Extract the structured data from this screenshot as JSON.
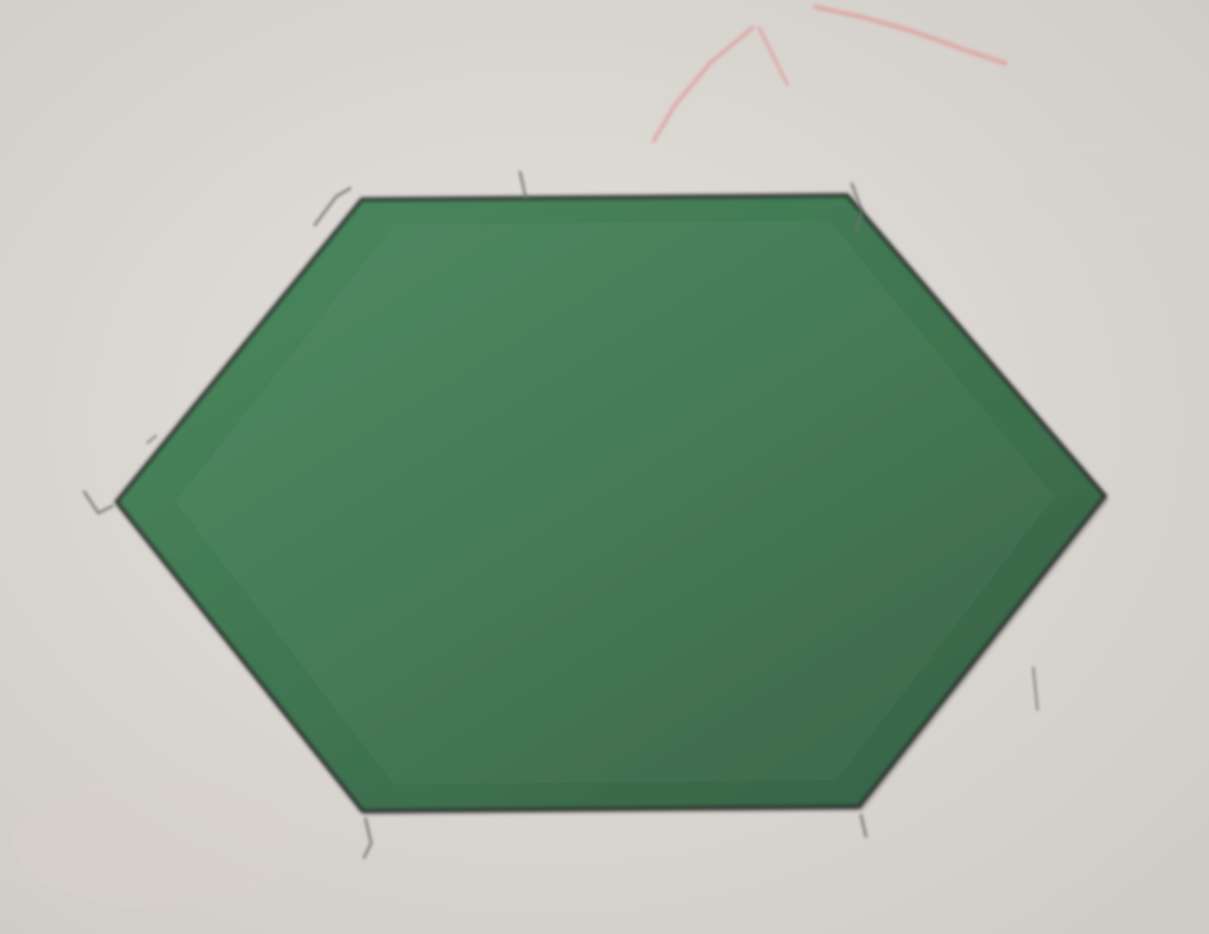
{
  "photo": {
    "paper_color": "#e4e1dc",
    "shadow_color": "#cfcbc5",
    "shape": {
      "kind": "hexagon",
      "fill_color": "#3f7350",
      "fill_light": "#4a8a5f",
      "fill_dark": "#356045",
      "outline_color": "#2b2b2b"
    },
    "pencil_marks": {
      "color": "#6e6e6e"
    },
    "red_pen_marks": {
      "color": "#e0a0a0"
    }
  }
}
